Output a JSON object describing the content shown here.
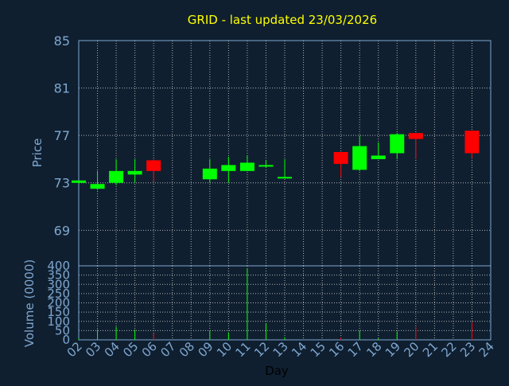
{
  "chart_data": [
    {
      "type": "candlestick",
      "title": "GRID - last updated 23/03/2026",
      "ylabel": "Price",
      "ylim": [
        66,
        85
      ],
      "yticks": [
        69,
        73,
        77,
        81,
        85
      ],
      "grid": true,
      "colors": {
        "up": "#00ff00",
        "down": "#ff0000",
        "grid": "#b0b0b0",
        "axis": "#7fa7cf",
        "background": "#0f1f30"
      },
      "candles": [
        {
          "day": "02",
          "open": 73.0,
          "high": 73.2,
          "low": 72.9,
          "close": 73.2
        },
        {
          "day": "03",
          "open": 72.5,
          "high": 74.0,
          "low": 72.4,
          "close": 72.9
        },
        {
          "day": "04",
          "open": 73.0,
          "high": 75.0,
          "low": 72.8,
          "close": 74.0
        },
        {
          "day": "05",
          "open": 73.7,
          "high": 75.0,
          "low": 73.0,
          "close": 74.0
        },
        {
          "day": "06",
          "open": 74.9,
          "high": 75.0,
          "low": 73.1,
          "close": 74.0
        },
        {
          "day": "09",
          "open": 73.3,
          "high": 75.0,
          "low": 73.0,
          "close": 74.2
        },
        {
          "day": "10",
          "open": 74.0,
          "high": 75.2,
          "low": 73.0,
          "close": 74.5
        },
        {
          "day": "11",
          "open": 74.0,
          "high": 75.3,
          "low": 74.0,
          "close": 74.7
        },
        {
          "day": "12",
          "open": 74.4,
          "high": 74.9,
          "low": 74.3,
          "close": 74.5
        },
        {
          "day": "13",
          "open": 73.4,
          "high": 75.0,
          "low": 73.4,
          "close": 73.5
        },
        {
          "day": "16",
          "open": 75.6,
          "high": 75.6,
          "low": 73.5,
          "close": 74.6
        },
        {
          "day": "17",
          "open": 74.1,
          "high": 77.0,
          "low": 74.0,
          "close": 76.1
        },
        {
          "day": "18",
          "open": 75.0,
          "high": 76.4,
          "low": 75.0,
          "close": 75.3
        },
        {
          "day": "19",
          "open": 75.5,
          "high": 77.2,
          "low": 75.0,
          "close": 77.1
        },
        {
          "day": "20",
          "open": 77.2,
          "high": 77.2,
          "low": 75.0,
          "close": 76.7
        },
        {
          "day": "23",
          "open": 77.4,
          "high": 77.4,
          "low": 75.1,
          "close": 75.5
        }
      ]
    },
    {
      "type": "bar",
      "ylabel": "Volume (0000)",
      "xlabel": "Day",
      "ylim": [
        0,
        400
      ],
      "yticks": [
        0,
        50,
        100,
        150,
        200,
        250,
        300,
        350,
        400
      ],
      "categories": [
        "02",
        "03",
        "04",
        "05",
        "06",
        "07",
        "08",
        "09",
        "10",
        "11",
        "12",
        "13",
        "14",
        "15",
        "16",
        "17",
        "18",
        "19",
        "20",
        "21",
        "22",
        "23",
        "24"
      ],
      "values": [
        8,
        55,
        70,
        55,
        35,
        0,
        0,
        50,
        40,
        385,
        90,
        15,
        0,
        0,
        12,
        50,
        8,
        45,
        70,
        0,
        0,
        95,
        0
      ],
      "colors": [
        "#00ff00",
        "#00ff00",
        "#00ff00",
        "#00ff00",
        "#ff0000",
        "#00ff00",
        "#00ff00",
        "#00ff00",
        "#00ff00",
        "#00ff00",
        "#00ff00",
        "#00ff00",
        "#00ff00",
        "#00ff00",
        "#ff0000",
        "#00ff00",
        "#00ff00",
        "#00ff00",
        "#ff0000",
        "#00ff00",
        "#00ff00",
        "#ff0000",
        "#00ff00"
      ]
    }
  ]
}
